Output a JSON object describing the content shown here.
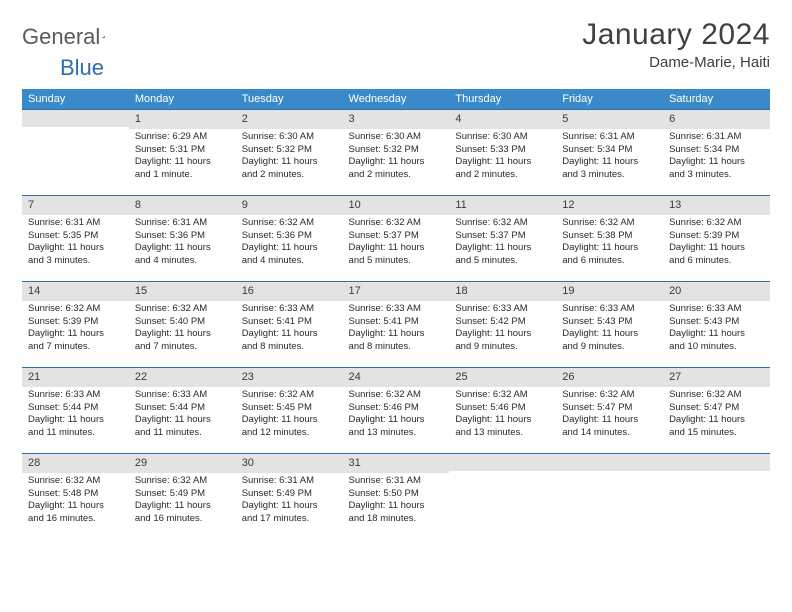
{
  "brand": {
    "part1": "General",
    "part2": "Blue"
  },
  "title": "January 2024",
  "location": "Dame-Marie, Haiti",
  "colors": {
    "header_bg": "#3a8ac9",
    "header_text": "#ffffff",
    "daynum_bg": "#e3e3e3",
    "daynum_border": "#2f6fb0",
    "body_text": "#2a2a2a",
    "title_text": "#404040",
    "page_bg": "#ffffff"
  },
  "typography": {
    "title_fontsize_pt": 22,
    "location_fontsize_pt": 11,
    "dayhead_fontsize_pt": 8,
    "cell_fontsize_pt": 7
  },
  "day_headers": [
    "Sunday",
    "Monday",
    "Tuesday",
    "Wednesday",
    "Thursday",
    "Friday",
    "Saturday"
  ],
  "weeks": [
    [
      null,
      {
        "n": "1",
        "sr": "Sunrise: 6:29 AM",
        "ss": "Sunset: 5:31 PM",
        "d1": "Daylight: 11 hours",
        "d2": "and 1 minute."
      },
      {
        "n": "2",
        "sr": "Sunrise: 6:30 AM",
        "ss": "Sunset: 5:32 PM",
        "d1": "Daylight: 11 hours",
        "d2": "and 2 minutes."
      },
      {
        "n": "3",
        "sr": "Sunrise: 6:30 AM",
        "ss": "Sunset: 5:32 PM",
        "d1": "Daylight: 11 hours",
        "d2": "and 2 minutes."
      },
      {
        "n": "4",
        "sr": "Sunrise: 6:30 AM",
        "ss": "Sunset: 5:33 PM",
        "d1": "Daylight: 11 hours",
        "d2": "and 2 minutes."
      },
      {
        "n": "5",
        "sr": "Sunrise: 6:31 AM",
        "ss": "Sunset: 5:34 PM",
        "d1": "Daylight: 11 hours",
        "d2": "and 3 minutes."
      },
      {
        "n": "6",
        "sr": "Sunrise: 6:31 AM",
        "ss": "Sunset: 5:34 PM",
        "d1": "Daylight: 11 hours",
        "d2": "and 3 minutes."
      }
    ],
    [
      {
        "n": "7",
        "sr": "Sunrise: 6:31 AM",
        "ss": "Sunset: 5:35 PM",
        "d1": "Daylight: 11 hours",
        "d2": "and 3 minutes."
      },
      {
        "n": "8",
        "sr": "Sunrise: 6:31 AM",
        "ss": "Sunset: 5:36 PM",
        "d1": "Daylight: 11 hours",
        "d2": "and 4 minutes."
      },
      {
        "n": "9",
        "sr": "Sunrise: 6:32 AM",
        "ss": "Sunset: 5:36 PM",
        "d1": "Daylight: 11 hours",
        "d2": "and 4 minutes."
      },
      {
        "n": "10",
        "sr": "Sunrise: 6:32 AM",
        "ss": "Sunset: 5:37 PM",
        "d1": "Daylight: 11 hours",
        "d2": "and 5 minutes."
      },
      {
        "n": "11",
        "sr": "Sunrise: 6:32 AM",
        "ss": "Sunset: 5:37 PM",
        "d1": "Daylight: 11 hours",
        "d2": "and 5 minutes."
      },
      {
        "n": "12",
        "sr": "Sunrise: 6:32 AM",
        "ss": "Sunset: 5:38 PM",
        "d1": "Daylight: 11 hours",
        "d2": "and 6 minutes."
      },
      {
        "n": "13",
        "sr": "Sunrise: 6:32 AM",
        "ss": "Sunset: 5:39 PM",
        "d1": "Daylight: 11 hours",
        "d2": "and 6 minutes."
      }
    ],
    [
      {
        "n": "14",
        "sr": "Sunrise: 6:32 AM",
        "ss": "Sunset: 5:39 PM",
        "d1": "Daylight: 11 hours",
        "d2": "and 7 minutes."
      },
      {
        "n": "15",
        "sr": "Sunrise: 6:32 AM",
        "ss": "Sunset: 5:40 PM",
        "d1": "Daylight: 11 hours",
        "d2": "and 7 minutes."
      },
      {
        "n": "16",
        "sr": "Sunrise: 6:33 AM",
        "ss": "Sunset: 5:41 PM",
        "d1": "Daylight: 11 hours",
        "d2": "and 8 minutes."
      },
      {
        "n": "17",
        "sr": "Sunrise: 6:33 AM",
        "ss": "Sunset: 5:41 PM",
        "d1": "Daylight: 11 hours",
        "d2": "and 8 minutes."
      },
      {
        "n": "18",
        "sr": "Sunrise: 6:33 AM",
        "ss": "Sunset: 5:42 PM",
        "d1": "Daylight: 11 hours",
        "d2": "and 9 minutes."
      },
      {
        "n": "19",
        "sr": "Sunrise: 6:33 AM",
        "ss": "Sunset: 5:43 PM",
        "d1": "Daylight: 11 hours",
        "d2": "and 9 minutes."
      },
      {
        "n": "20",
        "sr": "Sunrise: 6:33 AM",
        "ss": "Sunset: 5:43 PM",
        "d1": "Daylight: 11 hours",
        "d2": "and 10 minutes."
      }
    ],
    [
      {
        "n": "21",
        "sr": "Sunrise: 6:33 AM",
        "ss": "Sunset: 5:44 PM",
        "d1": "Daylight: 11 hours",
        "d2": "and 11 minutes."
      },
      {
        "n": "22",
        "sr": "Sunrise: 6:33 AM",
        "ss": "Sunset: 5:44 PM",
        "d1": "Daylight: 11 hours",
        "d2": "and 11 minutes."
      },
      {
        "n": "23",
        "sr": "Sunrise: 6:32 AM",
        "ss": "Sunset: 5:45 PM",
        "d1": "Daylight: 11 hours",
        "d2": "and 12 minutes."
      },
      {
        "n": "24",
        "sr": "Sunrise: 6:32 AM",
        "ss": "Sunset: 5:46 PM",
        "d1": "Daylight: 11 hours",
        "d2": "and 13 minutes."
      },
      {
        "n": "25",
        "sr": "Sunrise: 6:32 AM",
        "ss": "Sunset: 5:46 PM",
        "d1": "Daylight: 11 hours",
        "d2": "and 13 minutes."
      },
      {
        "n": "26",
        "sr": "Sunrise: 6:32 AM",
        "ss": "Sunset: 5:47 PM",
        "d1": "Daylight: 11 hours",
        "d2": "and 14 minutes."
      },
      {
        "n": "27",
        "sr": "Sunrise: 6:32 AM",
        "ss": "Sunset: 5:47 PM",
        "d1": "Daylight: 11 hours",
        "d2": "and 15 minutes."
      }
    ],
    [
      {
        "n": "28",
        "sr": "Sunrise: 6:32 AM",
        "ss": "Sunset: 5:48 PM",
        "d1": "Daylight: 11 hours",
        "d2": "and 16 minutes."
      },
      {
        "n": "29",
        "sr": "Sunrise: 6:32 AM",
        "ss": "Sunset: 5:49 PM",
        "d1": "Daylight: 11 hours",
        "d2": "and 16 minutes."
      },
      {
        "n": "30",
        "sr": "Sunrise: 6:31 AM",
        "ss": "Sunset: 5:49 PM",
        "d1": "Daylight: 11 hours",
        "d2": "and 17 minutes."
      },
      {
        "n": "31",
        "sr": "Sunrise: 6:31 AM",
        "ss": "Sunset: 5:50 PM",
        "d1": "Daylight: 11 hours",
        "d2": "and 18 minutes."
      },
      null,
      null,
      null
    ]
  ]
}
